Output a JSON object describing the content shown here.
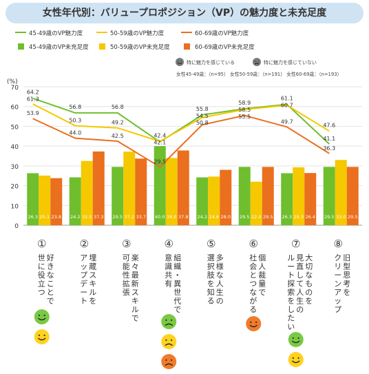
{
  "title": "女性年代別：バリュープロポジション（VP）の魅力度と未充足度",
  "colors": {
    "s1": "#6fbe2e",
    "s2": "#f5c800",
    "s3": "#ea6f1f",
    "face_green": "#7ac943",
    "face_yellow": "#ffd21f",
    "face_orange": "#f07b2a",
    "grid": "#e3e3e3",
    "axis": "#999999",
    "title_bg": "#cfe3f3"
  },
  "legend": {
    "lines": [
      "45-49歳のVP魅力度",
      "50-59歳のVP魅力度",
      "60-69歳のVP魅力度"
    ],
    "bars": [
      "45-49歳のVP未充足度",
      "50-59歳のVP未充足度",
      "60-69歳のVP未充足度"
    ],
    "face_good": "特に魅力を感じている",
    "face_bad": "特に魅力を感じていない",
    "sample": "女性45-49歳：（n=95）  女性50-59歳：（n=191）  女性60-69歳：（n=193）"
  },
  "chart_data": {
    "type": "bar",
    "ylabel": "(%)",
    "ylim": [
      0,
      70
    ],
    "yticks": [
      0,
      10,
      20,
      30,
      40,
      50,
      60,
      70
    ],
    "categories": [
      {
        "num": "①",
        "lines": [
          "好きなことで",
          "世に役立つ"
        ]
      },
      {
        "num": "②",
        "lines": [
          "埋蔵スキルを",
          "アップデート"
        ]
      },
      {
        "num": "③",
        "lines": [
          "楽々最新スキルで",
          "可能性拡張"
        ]
      },
      {
        "num": "④",
        "lines": [
          "組織・異世代で",
          "意識共有"
        ]
      },
      {
        "num": "⑤",
        "lines": [
          "多様な人生の",
          "選択肢を知る"
        ]
      },
      {
        "num": "⑥",
        "lines": [
          "個人裁量で",
          "社会とつながる"
        ]
      },
      {
        "num": "⑦",
        "lines": [
          "大切なものを",
          "見直して人生の",
          "ルート探索をしたい"
        ]
      },
      {
        "num": "⑧",
        "lines": [
          "旧型思考を",
          "クリーンアップ"
        ]
      }
    ],
    "bar_series": [
      {
        "name": "45-49歳のVP未充足度",
        "values": [
          26.3,
          24.2,
          29.5,
          40.0,
          24.2,
          29.5,
          26.3,
          29.5
        ]
      },
      {
        "name": "50-59歳のVP未充足度",
        "values": [
          25.1,
          32.5,
          37.2,
          34.0,
          24.6,
          22.0,
          29.3,
          33.0
        ]
      },
      {
        "name": "60-69歳のVP未充足度",
        "values": [
          23.8,
          37.3,
          33.7,
          37.8,
          28.0,
          29.5,
          26.4,
          29.5
        ]
      }
    ],
    "line_series": [
      {
        "name": "45-49歳のVP魅力度",
        "values": [
          64.2,
          56.8,
          56.8,
          42.1,
          55.8,
          58.9,
          61.1,
          41.1
        ]
      },
      {
        "name": "50-59歳のVP魅力度",
        "values": [
          61.3,
          50.3,
          49.2,
          42.4,
          54.5,
          58.5,
          60.7,
          47.6
        ]
      },
      {
        "name": "60-69歳のVP魅力度",
        "values": [
          53.9,
          44.0,
          42.5,
          29.5,
          50.8,
          55.5,
          49.7,
          36.3
        ]
      }
    ],
    "faces": [
      [
        "green-good",
        "yellow-good"
      ],
      [],
      [],
      [
        "green-bad",
        "yellow-bad",
        "orange-bad"
      ],
      [],
      [
        "orange-good"
      ],
      [
        "green-good",
        "yellow-good"
      ],
      []
    ]
  }
}
